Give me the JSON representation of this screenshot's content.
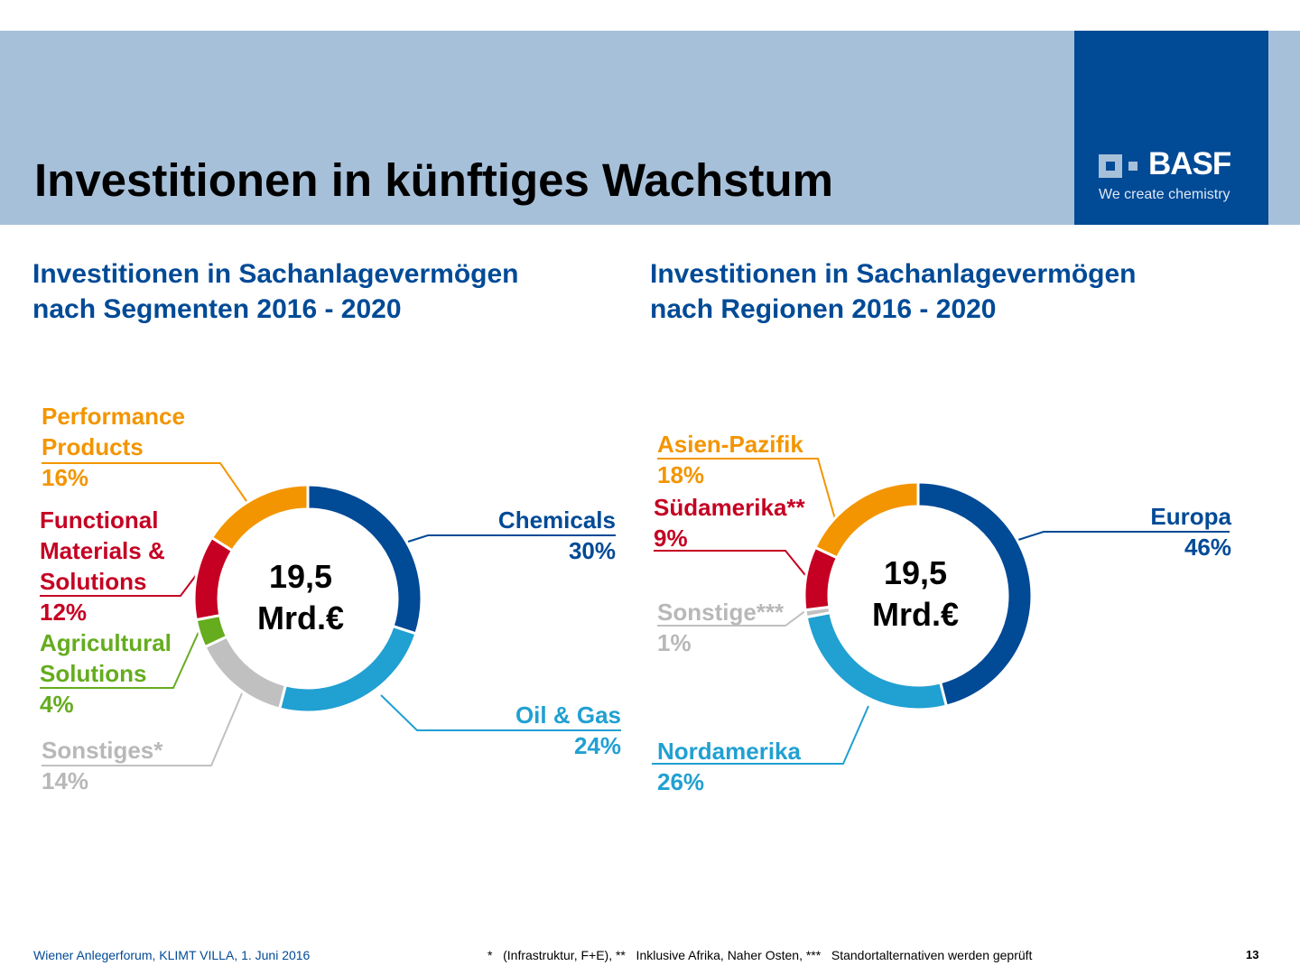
{
  "header": {
    "title": "Investitionen in künftiges Wachstum",
    "logo_name": "BASF",
    "logo_tagline": "We create chemistry"
  },
  "colors": {
    "band": "#a7c0d9",
    "brand": "#004a96"
  },
  "chart_data": [
    {
      "type": "pie",
      "donut": true,
      "title": "Investitionen in Sachanlagevermögen",
      "title_line2": "nach Segmenten 2016 - 2020",
      "center_value": "19,5",
      "center_unit": "Mrd.€",
      "slices": [
        {
          "label": "Chemicals",
          "value": 30,
          "value_label": "30%",
          "color": "#004a96"
        },
        {
          "label": "Oil & Gas",
          "value": 24,
          "value_label": "24%",
          "color": "#21a0d2"
        },
        {
          "label": "Sonstiges*",
          "value": 14,
          "value_label": "14%",
          "color": "#c0c0c0"
        },
        {
          "label": "Agricultural Solutions",
          "value": 4,
          "value_label": "4%",
          "color": "#65ac1e"
        },
        {
          "label": "Functional Materials & Solutions",
          "value": 12,
          "value_label": "12%",
          "color": "#c50022"
        },
        {
          "label": "Performance Products",
          "value": 16,
          "value_label": "16%",
          "color": "#f39500"
        }
      ]
    },
    {
      "type": "pie",
      "donut": true,
      "title": "Investitionen in Sachanlagevermögen",
      "title_line2": "nach Regionen 2016 - 2020",
      "center_value": "19,5",
      "center_unit": "Mrd.€",
      "slices": [
        {
          "label": "Europa",
          "value": 46,
          "value_label": "46%",
          "color": "#004a96"
        },
        {
          "label": "Nordamerika",
          "value": 26,
          "value_label": "26%",
          "color": "#21a0d2"
        },
        {
          "label": "Sonstige***",
          "value": 1,
          "value_label": "1%",
          "color": "#c0c0c0"
        },
        {
          "label": "Südamerika**",
          "value": 9,
          "value_label": "9%",
          "color": "#c50022"
        },
        {
          "label": "Asien-Pazifik",
          "value": 18,
          "value_label": "18%",
          "color": "#f39500"
        }
      ]
    }
  ],
  "labels1": {
    "perf1": "Performance",
    "perf2": "Products",
    "func1": "Functional",
    "func2": "Materials &",
    "func3": "Solutions",
    "agri1": "Agricultural",
    "agri2": "Solutions"
  },
  "footer": {
    "left": "Wiener Anlegerforum, KLIMT VILLA, 1. Juni 2016",
    "notes": "*   (Infrastruktur, F+E), **   Inklusive Afrika, Naher Osten, ***   Standortalternativen werden geprüft",
    "page": "13"
  }
}
